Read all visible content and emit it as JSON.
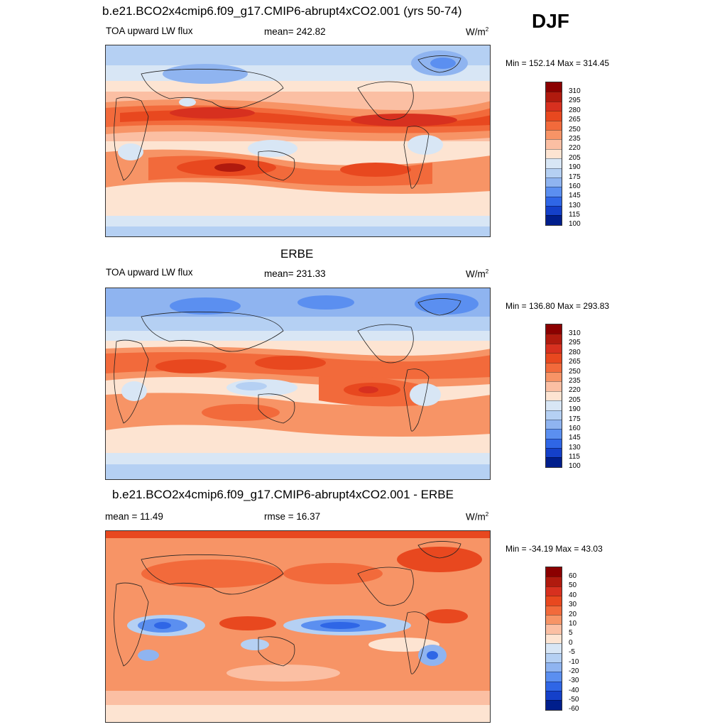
{
  "season": "DJF",
  "panels": [
    {
      "title": "b.e21.BCO2x4cmip6.f09_g17.CMIP6-abrupt4xCO2.001 (yrs 50-74)",
      "left_label": "TOA upward LW flux",
      "center_label": "mean= 242.82",
      "units": "W/m",
      "units_sup": "2",
      "minmax": "Min = 152.14 Max = 314.45",
      "levels": [
        "310",
        "295",
        "280",
        "265",
        "250",
        "235",
        "220",
        "205",
        "190",
        "175",
        "160",
        "145",
        "130",
        "115",
        "100"
      ]
    },
    {
      "title": "ERBE",
      "left_label": "TOA upward LW flux",
      "center_label": "mean= 231.33",
      "units": "W/m",
      "units_sup": "2",
      "minmax": "Min = 136.80 Max = 293.83",
      "levels": [
        "310",
        "295",
        "280",
        "265",
        "250",
        "235",
        "220",
        "205",
        "190",
        "175",
        "160",
        "145",
        "130",
        "115",
        "100"
      ]
    },
    {
      "title": "b.e21.BCO2x4cmip6.f09_g17.CMIP6-abrupt4xCO2.001 - ERBE",
      "left_label": "mean =  11.49",
      "center_label": "rmse =  16.37",
      "units": "W/m",
      "units_sup": "2",
      "minmax": "Min = -34.19 Max =  43.03",
      "levels": [
        "60",
        "50",
        "40",
        "30",
        "20",
        "10",
        "5",
        "0",
        "-5",
        "-10",
        "-20",
        "-30",
        "-40",
        "-50",
        "-60"
      ]
    }
  ],
  "colors": {
    "scale": [
      "#8b0000",
      "#b01a0e",
      "#d7301f",
      "#e8481f",
      "#f26a3b",
      "#f79466",
      "#fbbfa3",
      "#fde4d2",
      "#d8e6f5",
      "#b5d0f3",
      "#8fb4f0",
      "#5b8ff0",
      "#2f66e6",
      "#1440c9",
      "#001e8c"
    ]
  }
}
